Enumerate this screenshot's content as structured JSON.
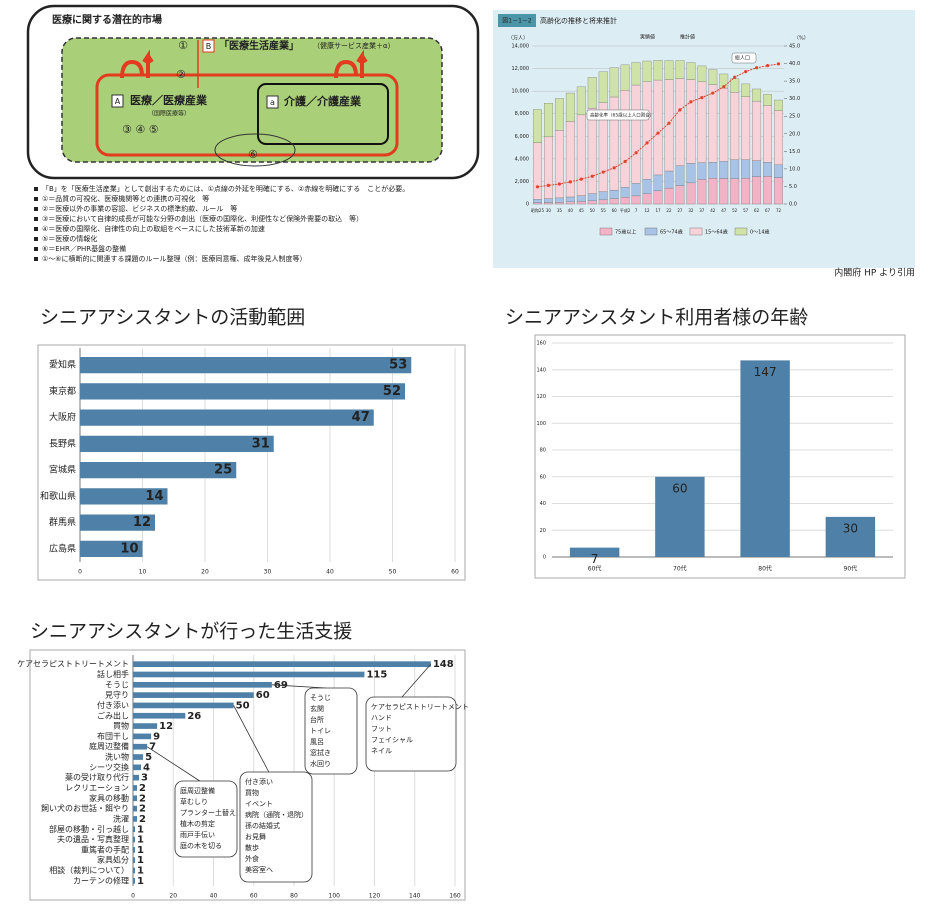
{
  "diagram": {
    "title": "医療に関する潜在的市場",
    "marker_1": "①",
    "box_b": "B",
    "b_label": "「医療生活産業」",
    "b_sub": "（健康サービス産業＋α）",
    "marker_2": "②",
    "box_a": "A",
    "a_label": "医療／医療産業",
    "a_sub": "（国際医療等）",
    "markers_345": "③ ④ ⑤",
    "box_small_a": "a",
    "care_label": "介護／介護産業",
    "marker_6": "⑥",
    "notes": [
      "「B」を「医療生活産業」として創出するためには、①点線の外延を明確にする、②赤線を明確にする　ことが必要。",
      "①＝品質の可視化、医療機関等との連携の可視化　等",
      "②＝医療以外の事業の容認、ビジネスの標準約款、ルール　等",
      "③＝医療において自律的成長が可能な分野の創出（医療の国際化、利便性など保険外需要の取込　等）",
      "④＝医療の国際化、自律性の向上の取組をベースにした技術革新の加速",
      "⑤＝医療の情報化",
      "⑥＝EHR／PHR基盤の整備",
      "①～⑥に横断的に関連する課題のルール整理（例：医療同意権、成年後見人制度等）"
    ]
  },
  "credit": "内閣府 HP より引用",
  "chart_data": [
    {
      "type": "stacked_bar",
      "figure_no": "図1－1－2",
      "title": "高齢化の推移と将来推計",
      "y_unit": "（万人）",
      "y2_unit": "（%）",
      "annotations": [
        "実績値",
        "推計値",
        "総人口",
        "高齢化率（65歳以上人口割合）"
      ],
      "categories": [
        "昭和25",
        "30",
        "35",
        "40",
        "45",
        "50",
        "55",
        "60",
        "平成2",
        "7",
        "12",
        "17",
        "22",
        "27",
        "32",
        "37",
        "42",
        "47",
        "52",
        "57",
        "62",
        "67",
        "72"
      ],
      "series": [
        {
          "name": "75歳以上",
          "color": "#f2b3c6",
          "values": [
            107,
            136,
            164,
            190,
            224,
            284,
            366,
            471,
            597,
            717,
            901,
            1164,
            1407,
            1632,
            1872,
            2180,
            2288,
            2260,
            2239,
            2277,
            2417,
            2446,
            2336
          ]
        },
        {
          "name": "65～74歳",
          "color": "#a8c3e6",
          "values": [
            309,
            339,
            378,
            433,
            516,
            632,
            721,
            761,
            892,
            1109,
            1301,
            1412,
            1517,
            1755,
            1747,
            1479,
            1407,
            1522,
            1681,
            1643,
            1424,
            1258,
            1133
          ]
        },
        {
          "name": "15～64歳",
          "color": "#f7d2d8",
          "values": [
            5017,
            5473,
            6000,
            6693,
            7157,
            7581,
            7883,
            8251,
            8590,
            8716,
            8622,
            8409,
            8103,
            7728,
            7406,
            7170,
            6875,
            6494,
            5978,
            5584,
            5275,
            4998,
            4793
          ]
        },
        {
          "name": "0～14歳",
          "color": "#cfe3a8",
          "values": [
            2943,
            2980,
            2807,
            2517,
            2482,
            2722,
            2751,
            2603,
            2249,
            2001,
            1847,
            1752,
            1680,
            1595,
            1507,
            1407,
            1321,
            1246,
            1194,
            1138,
            1077,
            1012,
            951
          ]
        },
        {
          "name": "高齢化率（65歳以上人口割合）",
          "color": "#e0452f",
          "axis": "y2",
          "values": [
            4.9,
            5.3,
            5.7,
            6.3,
            7.1,
            7.9,
            9.1,
            10.3,
            12.1,
            14.6,
            17.4,
            20.2,
            23.0,
            26.8,
            29.1,
            30.3,
            31.6,
            33.4,
            36.1,
            37.7,
            38.8,
            39.4,
            39.9
          ]
        }
      ],
      "ylim": [
        0,
        14000
      ],
      "yticks": [
        0,
        {
          "value": 2000,
          "label": "2,000"
        },
        {
          "value": 4000,
          "label": "4,000"
        },
        {
          "value": 6000,
          "label": "6,000"
        },
        {
          "value": 8000,
          "label": "8,000"
        },
        {
          "value": 10000,
          "label": "10,000"
        },
        {
          "value": 12000,
          "label": "12,000"
        },
        {
          "value": 14000,
          "label": "14,000"
        }
      ],
      "y2lim": [
        0,
        45
      ],
      "y2ticks": [
        {
          "value": 0,
          "label": "0.0"
        },
        {
          "value": 5,
          "label": "5.0"
        },
        {
          "value": 10,
          "label": "10.0"
        },
        {
          "value": 15,
          "label": "15.0"
        },
        {
          "value": 20,
          "label": "20.0"
        },
        {
          "value": 25,
          "label": "25.0"
        },
        {
          "value": 30,
          "label": "30.0"
        },
        {
          "value": 35,
          "label": "35.0"
        },
        {
          "value": 40,
          "label": "40.0"
        },
        {
          "value": 45,
          "label": "45.0"
        }
      ],
      "grid": true,
      "legend": "bottom"
    },
    {
      "type": "hbar",
      "title": "シニアアシスタントの活動範囲",
      "categories": [
        "愛知県",
        "東京都",
        "大阪府",
        "長野県",
        "宮城県",
        "和歌山県",
        "群馬県",
        "広島県"
      ],
      "values": [
        53,
        52,
        47,
        31,
        25,
        14,
        12,
        10
      ],
      "color": "#4f81a8",
      "xlim": [
        0,
        60
      ],
      "xticks": [
        0,
        10,
        20,
        30,
        40,
        50,
        60
      ],
      "grid": true
    },
    {
      "type": "bar",
      "title": "シニアアシスタント利用者様の年齢",
      "categories": [
        "60代",
        "70代",
        "80代",
        "90代"
      ],
      "values": [
        7,
        60,
        147,
        30
      ],
      "color": "#4f81a8",
      "ylim": [
        0,
        160
      ],
      "yticks": [
        0,
        20,
        40,
        60,
        80,
        100,
        120,
        140,
        160
      ],
      "grid": true
    },
    {
      "type": "hbar",
      "title": "シニアアシスタントが行った生活支援",
      "categories": [
        "ケアセラピストトリートメント",
        "話し相手",
        "そうじ",
        "見守り",
        "付き添い",
        "ごみ出し",
        "買物",
        "布団干し",
        "庭周辺整備",
        "洗い物",
        "シーツ交換",
        "薬の受け取り代行",
        "レクリエーション",
        "家具の移動",
        "飼い犬のお世話・餌やり",
        "洗濯",
        "部屋の移動・引っ越し",
        "夫の遺品・写真整理",
        "重篤者の手配",
        "家具処分",
        "相談（裁判について）",
        "カーテンの修理"
      ],
      "values": [
        148,
        115,
        69,
        60,
        50,
        26,
        12,
        9,
        7,
        5,
        4,
        3,
        2,
        2,
        2,
        2,
        1,
        1,
        1,
        1,
        1,
        1
      ],
      "color": "#4f81a8",
      "xlim": [
        0,
        160
      ],
      "xticks": [
        0,
        20,
        40,
        60,
        80,
        100,
        120,
        140,
        160
      ],
      "grid": true,
      "callouts": [
        {
          "lines": [
            "そうじ",
            "玄関",
            "台所",
            "トイレ",
            "風呂",
            "窓拭き",
            "水回り"
          ]
        },
        {
          "lines": [
            "ケアセラピストトリートメント",
            "ハンド",
            "フット",
            "フェイシャル",
            "ネイル"
          ]
        },
        {
          "lines": [
            "庭周辺整備",
            "草むしり",
            "プランター土替え",
            "植木の剪定",
            "雨戸手伝い",
            "庭の木を切る"
          ]
        },
        {
          "lines": [
            "付き添い",
            "買物",
            "イベント",
            "病院（通院・退院）",
            "孫の結婚式",
            "お見舞",
            "散歩",
            "外食",
            "美容室へ"
          ]
        }
      ]
    }
  ]
}
